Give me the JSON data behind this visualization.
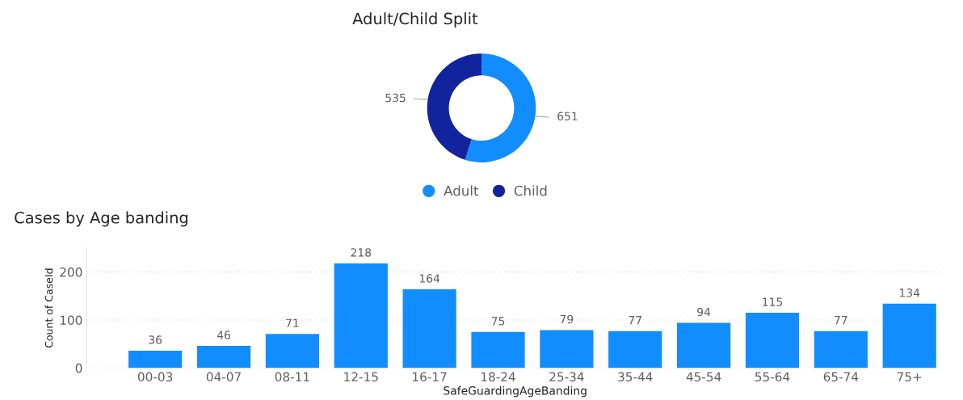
{
  "chart_data": [
    {
      "type": "donut",
      "title": "Adult/Child Split",
      "categories": [
        "Adult",
        "Child"
      ],
      "values": [
        651,
        535
      ],
      "colors": [
        "#118dff",
        "#12239e"
      ],
      "data_labels": true,
      "legend": "bottom"
    },
    {
      "type": "bar",
      "title": "Cases by Age banding",
      "xlabel": "SafeGuardingAgeBanding",
      "ylabel": "Count of CaseId",
      "categories": [
        "00-03",
        "04-07",
        "08-11",
        "12-15",
        "16-17",
        "18-24",
        "25-34",
        "35-44",
        "45-54",
        "55-64",
        "65-74",
        "75+"
      ],
      "values": [
        36,
        46,
        71,
        218,
        164,
        75,
        79,
        77,
        94,
        115,
        77,
        134
      ],
      "color": "#118dff",
      "ylim": [
        0,
        250
      ],
      "yticks": [
        0,
        100,
        200
      ],
      "grid": "y",
      "data_labels": true
    }
  ]
}
